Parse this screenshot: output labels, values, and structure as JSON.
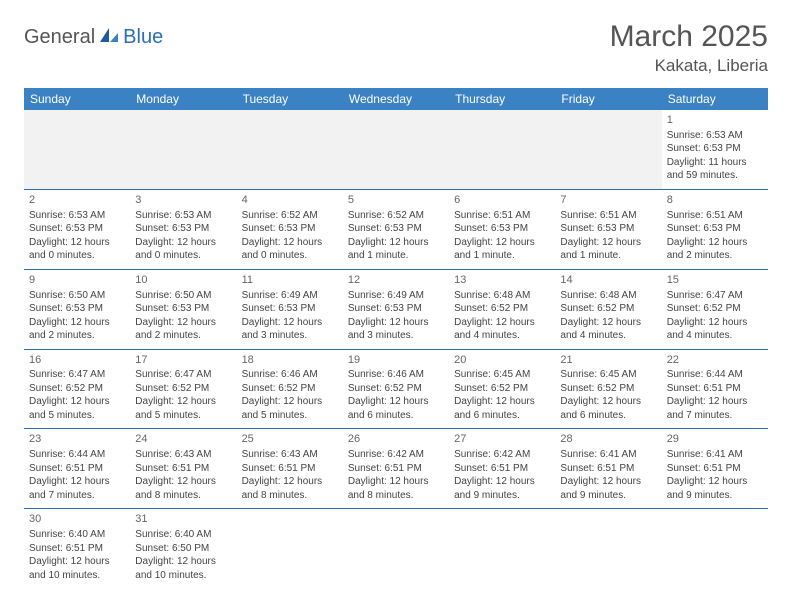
{
  "logo": {
    "part1": "General",
    "part2": "Blue"
  },
  "title": "March 2025",
  "location": "Kakata, Liberia",
  "colors": {
    "header_bg": "#3b82c4",
    "header_text": "#ffffff",
    "border": "#2a6db8",
    "blank_bg": "#f2f2f2",
    "logo_accent": "#2a6db8",
    "text": "#444444"
  },
  "weekdays": [
    "Sunday",
    "Monday",
    "Tuesday",
    "Wednesday",
    "Thursday",
    "Friday",
    "Saturday"
  ],
  "weeks": [
    [
      {
        "blank": true
      },
      {
        "blank": true
      },
      {
        "blank": true
      },
      {
        "blank": true
      },
      {
        "blank": true
      },
      {
        "blank": true
      },
      {
        "day": "1",
        "sunrise": "Sunrise: 6:53 AM",
        "sunset": "Sunset: 6:53 PM",
        "daylight1": "Daylight: 11 hours",
        "daylight2": "and 59 minutes."
      }
    ],
    [
      {
        "day": "2",
        "sunrise": "Sunrise: 6:53 AM",
        "sunset": "Sunset: 6:53 PM",
        "daylight1": "Daylight: 12 hours",
        "daylight2": "and 0 minutes."
      },
      {
        "day": "3",
        "sunrise": "Sunrise: 6:53 AM",
        "sunset": "Sunset: 6:53 PM",
        "daylight1": "Daylight: 12 hours",
        "daylight2": "and 0 minutes."
      },
      {
        "day": "4",
        "sunrise": "Sunrise: 6:52 AM",
        "sunset": "Sunset: 6:53 PM",
        "daylight1": "Daylight: 12 hours",
        "daylight2": "and 0 minutes."
      },
      {
        "day": "5",
        "sunrise": "Sunrise: 6:52 AM",
        "sunset": "Sunset: 6:53 PM",
        "daylight1": "Daylight: 12 hours",
        "daylight2": "and 1 minute."
      },
      {
        "day": "6",
        "sunrise": "Sunrise: 6:51 AM",
        "sunset": "Sunset: 6:53 PM",
        "daylight1": "Daylight: 12 hours",
        "daylight2": "and 1 minute."
      },
      {
        "day": "7",
        "sunrise": "Sunrise: 6:51 AM",
        "sunset": "Sunset: 6:53 PM",
        "daylight1": "Daylight: 12 hours",
        "daylight2": "and 1 minute."
      },
      {
        "day": "8",
        "sunrise": "Sunrise: 6:51 AM",
        "sunset": "Sunset: 6:53 PM",
        "daylight1": "Daylight: 12 hours",
        "daylight2": "and 2 minutes."
      }
    ],
    [
      {
        "day": "9",
        "sunrise": "Sunrise: 6:50 AM",
        "sunset": "Sunset: 6:53 PM",
        "daylight1": "Daylight: 12 hours",
        "daylight2": "and 2 minutes."
      },
      {
        "day": "10",
        "sunrise": "Sunrise: 6:50 AM",
        "sunset": "Sunset: 6:53 PM",
        "daylight1": "Daylight: 12 hours",
        "daylight2": "and 2 minutes."
      },
      {
        "day": "11",
        "sunrise": "Sunrise: 6:49 AM",
        "sunset": "Sunset: 6:53 PM",
        "daylight1": "Daylight: 12 hours",
        "daylight2": "and 3 minutes."
      },
      {
        "day": "12",
        "sunrise": "Sunrise: 6:49 AM",
        "sunset": "Sunset: 6:53 PM",
        "daylight1": "Daylight: 12 hours",
        "daylight2": "and 3 minutes."
      },
      {
        "day": "13",
        "sunrise": "Sunrise: 6:48 AM",
        "sunset": "Sunset: 6:52 PM",
        "daylight1": "Daylight: 12 hours",
        "daylight2": "and 4 minutes."
      },
      {
        "day": "14",
        "sunrise": "Sunrise: 6:48 AM",
        "sunset": "Sunset: 6:52 PM",
        "daylight1": "Daylight: 12 hours",
        "daylight2": "and 4 minutes."
      },
      {
        "day": "15",
        "sunrise": "Sunrise: 6:47 AM",
        "sunset": "Sunset: 6:52 PM",
        "daylight1": "Daylight: 12 hours",
        "daylight2": "and 4 minutes."
      }
    ],
    [
      {
        "day": "16",
        "sunrise": "Sunrise: 6:47 AM",
        "sunset": "Sunset: 6:52 PM",
        "daylight1": "Daylight: 12 hours",
        "daylight2": "and 5 minutes."
      },
      {
        "day": "17",
        "sunrise": "Sunrise: 6:47 AM",
        "sunset": "Sunset: 6:52 PM",
        "daylight1": "Daylight: 12 hours",
        "daylight2": "and 5 minutes."
      },
      {
        "day": "18",
        "sunrise": "Sunrise: 6:46 AM",
        "sunset": "Sunset: 6:52 PM",
        "daylight1": "Daylight: 12 hours",
        "daylight2": "and 5 minutes."
      },
      {
        "day": "19",
        "sunrise": "Sunrise: 6:46 AM",
        "sunset": "Sunset: 6:52 PM",
        "daylight1": "Daylight: 12 hours",
        "daylight2": "and 6 minutes."
      },
      {
        "day": "20",
        "sunrise": "Sunrise: 6:45 AM",
        "sunset": "Sunset: 6:52 PM",
        "daylight1": "Daylight: 12 hours",
        "daylight2": "and 6 minutes."
      },
      {
        "day": "21",
        "sunrise": "Sunrise: 6:45 AM",
        "sunset": "Sunset: 6:52 PM",
        "daylight1": "Daylight: 12 hours",
        "daylight2": "and 6 minutes."
      },
      {
        "day": "22",
        "sunrise": "Sunrise: 6:44 AM",
        "sunset": "Sunset: 6:51 PM",
        "daylight1": "Daylight: 12 hours",
        "daylight2": "and 7 minutes."
      }
    ],
    [
      {
        "day": "23",
        "sunrise": "Sunrise: 6:44 AM",
        "sunset": "Sunset: 6:51 PM",
        "daylight1": "Daylight: 12 hours",
        "daylight2": "and 7 minutes."
      },
      {
        "day": "24",
        "sunrise": "Sunrise: 6:43 AM",
        "sunset": "Sunset: 6:51 PM",
        "daylight1": "Daylight: 12 hours",
        "daylight2": "and 8 minutes."
      },
      {
        "day": "25",
        "sunrise": "Sunrise: 6:43 AM",
        "sunset": "Sunset: 6:51 PM",
        "daylight1": "Daylight: 12 hours",
        "daylight2": "and 8 minutes."
      },
      {
        "day": "26",
        "sunrise": "Sunrise: 6:42 AM",
        "sunset": "Sunset: 6:51 PM",
        "daylight1": "Daylight: 12 hours",
        "daylight2": "and 8 minutes."
      },
      {
        "day": "27",
        "sunrise": "Sunrise: 6:42 AM",
        "sunset": "Sunset: 6:51 PM",
        "daylight1": "Daylight: 12 hours",
        "daylight2": "and 9 minutes."
      },
      {
        "day": "28",
        "sunrise": "Sunrise: 6:41 AM",
        "sunset": "Sunset: 6:51 PM",
        "daylight1": "Daylight: 12 hours",
        "daylight2": "and 9 minutes."
      },
      {
        "day": "29",
        "sunrise": "Sunrise: 6:41 AM",
        "sunset": "Sunset: 6:51 PM",
        "daylight1": "Daylight: 12 hours",
        "daylight2": "and 9 minutes."
      }
    ],
    [
      {
        "day": "30",
        "sunrise": "Sunrise: 6:40 AM",
        "sunset": "Sunset: 6:51 PM",
        "daylight1": "Daylight: 12 hours",
        "daylight2": "and 10 minutes."
      },
      {
        "day": "31",
        "sunrise": "Sunrise: 6:40 AM",
        "sunset": "Sunset: 6:50 PM",
        "daylight1": "Daylight: 12 hours",
        "daylight2": "and 10 minutes."
      },
      {
        "blank": true,
        "tail": true
      },
      {
        "blank": true,
        "tail": true
      },
      {
        "blank": true,
        "tail": true
      },
      {
        "blank": true,
        "tail": true
      },
      {
        "blank": true,
        "tail": true
      }
    ]
  ]
}
